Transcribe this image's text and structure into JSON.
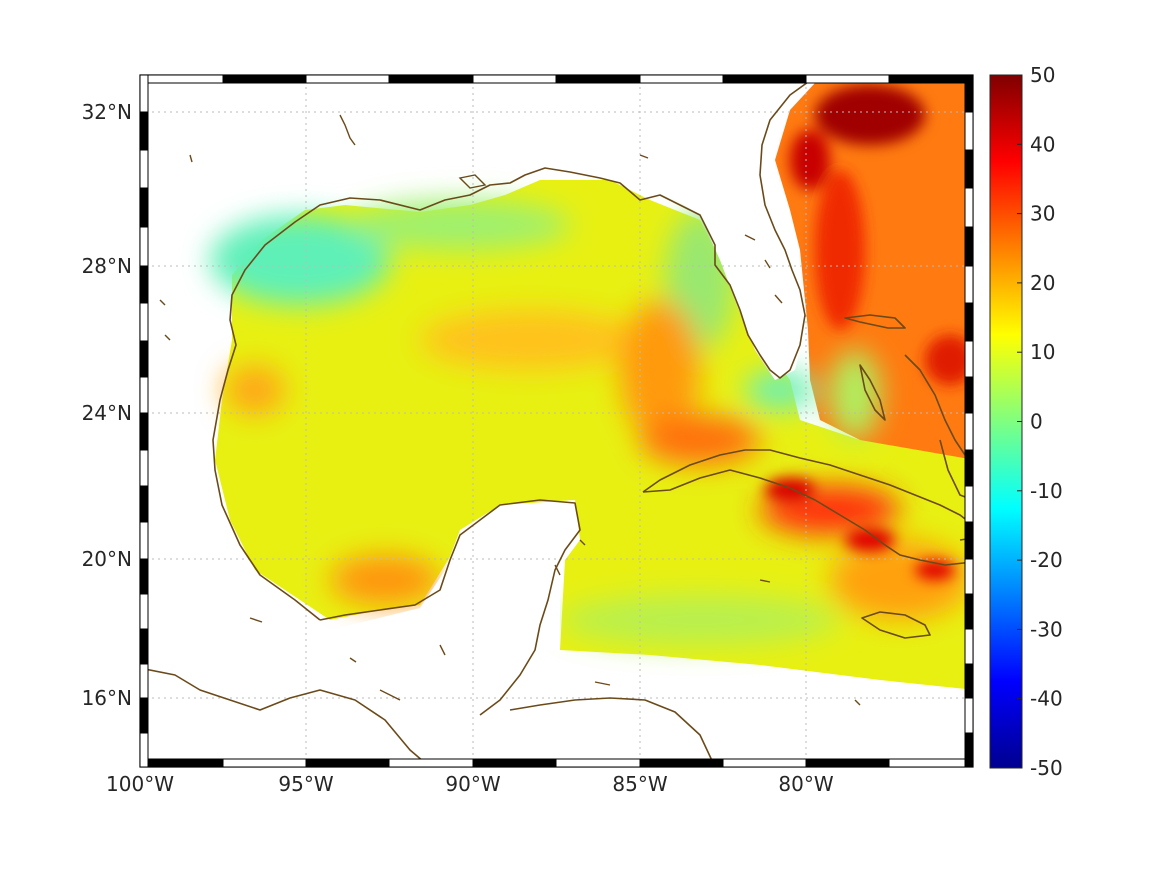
{
  "map": {
    "lon_range": [
      -100,
      -75
    ],
    "lat_range": [
      14.5,
      33
    ],
    "x_ticks": [
      {
        "lon": -100,
        "label": "100°W"
      },
      {
        "lon": -95,
        "label": "95°W"
      },
      {
        "lon": -90,
        "label": "90°W"
      },
      {
        "lon": -85,
        "label": "85°W"
      },
      {
        "lon": -80,
        "label": "80°W"
      }
    ],
    "y_ticks": [
      {
        "lat": 32,
        "label": "32°N"
      },
      {
        "lat": 28,
        "label": "28°N"
      },
      {
        "lat": 24,
        "label": "24°N"
      },
      {
        "lat": 20,
        "label": "20°N"
      },
      {
        "lat": 16,
        "label": "16°N"
      }
    ],
    "grid": "dotted",
    "frame": "black-white-alternating",
    "coastline_color": "#6b4a1a"
  },
  "colorbar": {
    "min": -50,
    "max": 50,
    "colormap": "jet",
    "ticks": [
      {
        "value": 50,
        "label": "50"
      },
      {
        "value": 40,
        "label": "40"
      },
      {
        "value": 30,
        "label": "30"
      },
      {
        "value": 20,
        "label": "20"
      },
      {
        "value": 10,
        "label": "10"
      },
      {
        "value": 0,
        "label": "0"
      },
      {
        "value": -10,
        "label": "-10"
      },
      {
        "value": -20,
        "label": "-20"
      },
      {
        "value": -30,
        "label": "-30"
      },
      {
        "value": -40,
        "label": "-40"
      },
      {
        "value": -50,
        "label": "-50"
      }
    ]
  },
  "field": {
    "background_value": 10,
    "features": [
      {
        "region": "northwest Gulf shelf",
        "value": -3
      },
      {
        "region": "north-central Gulf shelf",
        "value": 2
      },
      {
        "region": "west Florida shelf",
        "value": 3
      },
      {
        "region": "Florida Keys / Straits",
        "value": 0
      },
      {
        "region": "central Gulf band",
        "value": 16
      },
      {
        "region": "eastern Gulf",
        "value": 20
      },
      {
        "region": "Bay of Campeche",
        "value": 20
      },
      {
        "region": "Gulf Stream off Carolinas",
        "value": 48
      },
      {
        "region": "Atlantic east of Florida",
        "value": 30
      },
      {
        "region": "south of Cuba / Hispaniola",
        "value": 38
      },
      {
        "region": "western Caribbean",
        "value": 10
      }
    ]
  }
}
